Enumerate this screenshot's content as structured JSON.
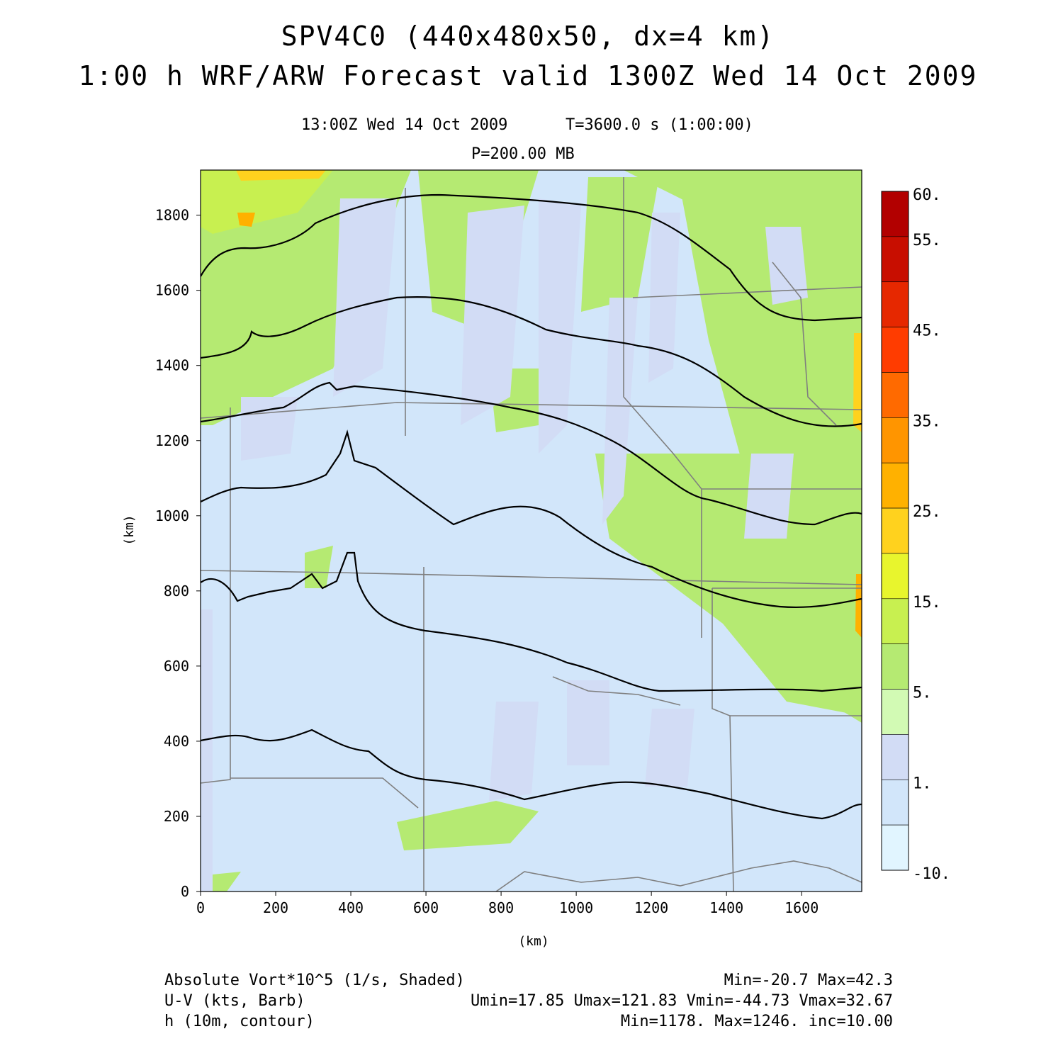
{
  "header": {
    "title_line1": "SPV4C0 (440x480x50, dx=4 km)",
    "title_line2": "1:00 h WRF/ARW Forecast valid 1300Z Wed 14 Oct 2009",
    "subtitle_time": "13:00Z Wed 14 Oct 2009",
    "subtitle_step": "T=3600.0 s (1:00:00)",
    "level": "P=200.00 MB"
  },
  "chart_data": {
    "type": "heatmap",
    "xlabel": "(km)",
    "ylabel": "(km)",
    "xlim": [
      0,
      1760
    ],
    "ylim": [
      0,
      1920
    ],
    "x_ticks": [
      "0",
      "200",
      "400",
      "600",
      "800",
      "1000",
      "1200",
      "1400",
      "1600"
    ],
    "y_ticks": [
      "0",
      "200",
      "400",
      "600",
      "800",
      "1000",
      "1200",
      "1400",
      "1600",
      "1800"
    ],
    "colorbar": {
      "labels": [
        "60.",
        "55.",
        "45.",
        "35.",
        "25.",
        "15.",
        "5.",
        "1.",
        "-10."
      ],
      "colors": [
        "#b20000",
        "#c80e00",
        "#e62800",
        "#ff3c00",
        "#ff6a00",
        "#ff9500",
        "#ffb100",
        "#ffd21e",
        "#e8f52d",
        "#c8f050",
        "#b5ea72",
        "#d2fab4",
        "#d2dcf5",
        "#d2e6fa",
        "#e1f5ff"
      ]
    },
    "contour_levels_y_km": [
      1810,
      1590,
      1290,
      1030,
      790,
      590,
      250
    ],
    "fields": [
      {
        "name": "Absolute Vort*10^5 (1/s, Shaded)",
        "stats": "Min=-20.7 Max=42.3"
      },
      {
        "name": "U-V (kts, Barb)",
        "stats": "Umin=17.85 Umax=121.83 Vmin=-44.73 Vmax=32.67"
      },
      {
        "name": "h (10m, contour)",
        "stats": "Min=1178. Max=1246. inc=10.00"
      }
    ]
  }
}
